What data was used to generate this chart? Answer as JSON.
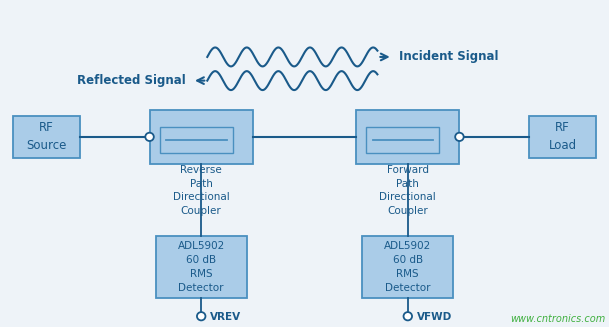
{
  "bg_color": "#eef3f8",
  "box_fill": "#aacce8",
  "box_edge": "#4a90c0",
  "text_color": "#1a5a8a",
  "line_color": "#1a5a8a",
  "watermark_color": "#40b040",
  "watermark_text": "www.cntronics.com",
  "rf_source_label": "RF\nSource",
  "rf_load_label": "RF\nLoad",
  "reverse_coupler_label": "Reverse\nPath\nDirectional\nCoupler",
  "forward_coupler_label": "Forward\nPath\nDirectional\nCoupler",
  "adl_left_label": "ADL5902\n60 dB\nRMS\nDetector",
  "adl_right_label": "ADL5902\n60 dB\nRMS\nDetector",
  "vrev_label": "VREV",
  "vfwd_label": "VFWD",
  "reflected_label": "Reflected Signal",
  "incident_label": "Incident Signal",
  "font_size_small": 7.5,
  "font_size_box": 8.5,
  "font_size_signal": 8.5,
  "font_size_watermark": 7,
  "xlim": [
    0,
    10
  ],
  "ylim": [
    0,
    5.5
  ]
}
